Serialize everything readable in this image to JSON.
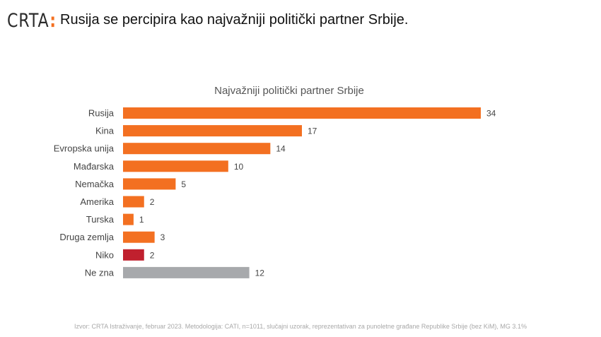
{
  "header": {
    "logo_text": "CRTA",
    "logo_colon": ":",
    "headline": "Rusija se percipira kao najvažniji politički partner Srbije."
  },
  "colors": {
    "accent": "#f37021",
    "highlight": "#c0202e",
    "neutral": "#a7a9ac"
  },
  "chart_data": {
    "type": "bar",
    "orientation": "horizontal",
    "title": "Najvažniji politički partner Srbije",
    "categories": [
      "Rusija",
      "Kina",
      "Evropska unija",
      "Mađarska",
      "Nemačka",
      "Amerika",
      "Turska",
      "Druga zemlja",
      "Niko",
      "Ne zna"
    ],
    "values": [
      34,
      17,
      14,
      10,
      5,
      2,
      1,
      3,
      2,
      12
    ],
    "bar_colors": [
      "#f37021",
      "#f37021",
      "#f37021",
      "#f37021",
      "#f37021",
      "#f37021",
      "#f37021",
      "#f37021",
      "#c0202e",
      "#a7a9ac"
    ],
    "xlim": [
      0,
      34
    ],
    "grid": false,
    "legend": "none",
    "xlabel": "",
    "ylabel": ""
  },
  "footnote": "Izvor: CRTA Istraživanje, februar 2023. Metodologija: CATI, n=1011, slučajni uzorak, reprezentativan za punoletne građane Republike Srbije (bez KiM), MG 3.1%"
}
